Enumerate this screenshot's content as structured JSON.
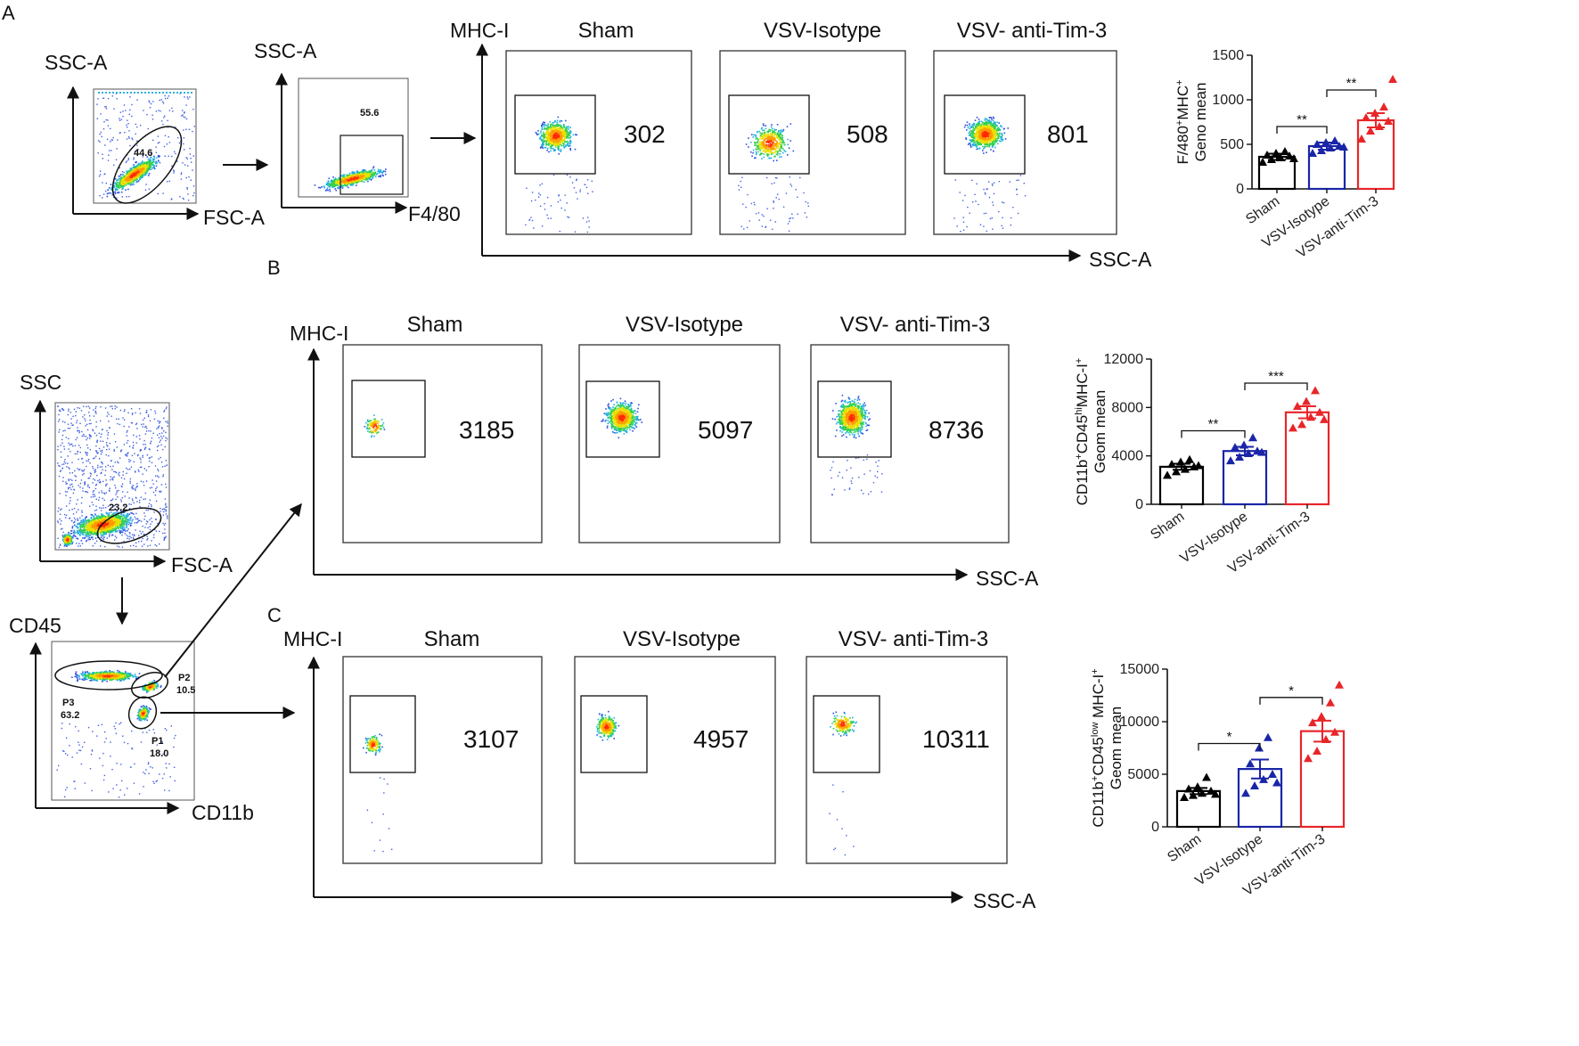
{
  "panels": {
    "a": "A",
    "b": "B",
    "c": "C"
  },
  "axis_labels": {
    "ssc_a": "SSC-A",
    "fsc_a": "FSC-A",
    "f480": "F4/80",
    "mhc_i": "MHC-I",
    "ssc": "SSC",
    "cd45": "CD45",
    "cd11b": "CD11b"
  },
  "groups": {
    "sham": "Sham",
    "iso": "VSV-Isotype",
    "tim3": "VSV- anti-Tim-3"
  },
  "gates": {
    "a_fsc": "44.6",
    "a_f480": "55.6",
    "b_fsc": "23.2",
    "p1": "P1",
    "p1v": "18.0",
    "p2": "P2",
    "p2v": "10.5",
    "p3": "P3",
    "p3v": "63.2"
  },
  "mfi": {
    "a": [
      "302",
      "508",
      "801"
    ],
    "b": [
      "3185",
      "5097",
      "8736"
    ],
    "c": [
      "3107",
      "4957",
      "10311"
    ]
  },
  "colors": {
    "sham": "#000000",
    "iso": "#1a25a8",
    "tim3": "#e8262a"
  },
  "chart_data": [
    {
      "type": "bar",
      "panel": "A",
      "categories": [
        "Sham",
        "VSV-Isotype",
        "VSV-anti-Tim-3"
      ],
      "values": [
        360,
        480,
        770
      ],
      "errors": [
        35,
        40,
        80
      ],
      "points": [
        [
          300,
          330,
          350,
          370,
          380,
          400,
          420,
          340
        ],
        [
          400,
          430,
          460,
          480,
          500,
          520,
          540,
          470
        ],
        [
          560,
          650,
          700,
          760,
          800,
          850,
          920,
          1230
        ]
      ],
      "ylabel_line1": "F/480",
      "ylabel_sup1": "+",
      "ylabel_mid": "MHC",
      "ylabel_sup2": "+",
      "ylabel_line2": "Geno mean",
      "ylim": [
        0,
        1500
      ],
      "yticks": [
        "0",
        "500",
        "1000",
        "1500"
      ],
      "significance": [
        {
          "from": 0,
          "to": 1,
          "label": "**"
        },
        {
          "from": 1,
          "to": 2,
          "label": "**"
        }
      ]
    },
    {
      "type": "bar",
      "panel": "B",
      "categories": [
        "Sham",
        "VSV-Isotype",
        "VSV-anti-Tim-3"
      ],
      "values": [
        3100,
        4400,
        7600
      ],
      "errors": [
        250,
        350,
        500
      ],
      "points": [
        [
          2400,
          2700,
          2900,
          3100,
          3300,
          3500,
          3700,
          3200
        ],
        [
          3600,
          3900,
          4200,
          4400,
          4700,
          4900,
          5500,
          4300
        ],
        [
          6300,
          6600,
          7200,
          7600,
          8100,
          8500,
          9400,
          7000
        ]
      ],
      "ylabel_line1": "CD11b",
      "ylabel_sup1": "+",
      "ylabel_mid": "CD45",
      "ylabel_sup2": "hi",
      "ylabel_tail": "MHC-I",
      "ylabel_sup3": "+",
      "ylabel_line2": "Geom mean",
      "ylim": [
        0,
        12000
      ],
      "yticks": [
        "0",
        "4000",
        "8000",
        "12000"
      ],
      "significance": [
        {
          "from": 0,
          "to": 1,
          "label": "**"
        },
        {
          "from": 1,
          "to": 2,
          "label": "***"
        }
      ]
    },
    {
      "type": "bar",
      "panel": "C",
      "categories": [
        "Sham",
        "VSV-Isotype",
        "VSV-anti-Tim-3"
      ],
      "values": [
        3400,
        5500,
        9100
      ],
      "errors": [
        300,
        900,
        1000
      ],
      "points": [
        [
          2800,
          3000,
          3200,
          3400,
          3600,
          3800,
          4700,
          3100
        ],
        [
          3200,
          3900,
          4500,
          5000,
          6000,
          7500,
          8500,
          4200
        ],
        [
          6500,
          7200,
          8300,
          9000,
          9900,
          10500,
          11800,
          13500
        ]
      ],
      "ylabel_line1": "CD11b",
      "ylabel_sup1": "+",
      "ylabel_mid": "CD45",
      "ylabel_sup2": "low",
      "ylabel_tail": " MHC-I",
      "ylabel_sup3": "+",
      "ylabel_line2": "Geom mean",
      "ylim": [
        0,
        15000
      ],
      "yticks": [
        "0",
        "5000",
        "10000",
        "15000"
      ],
      "significance": [
        {
          "from": 0,
          "to": 1,
          "label": "*"
        },
        {
          "from": 1,
          "to": 2,
          "label": "*"
        }
      ]
    }
  ]
}
